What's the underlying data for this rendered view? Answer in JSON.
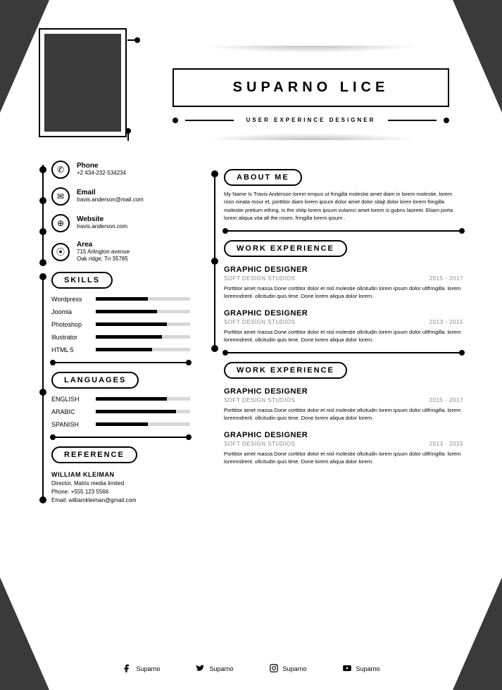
{
  "colors": {
    "dark": "#3a3a3a",
    "black": "#000000",
    "grey": "#d8d8d8",
    "text_grey": "#888888",
    "bg": "#ffffff"
  },
  "header": {
    "name": "SUPARNO LICE",
    "subtitle": "USER EXPERINCE DESIGNER"
  },
  "contact": {
    "items": [
      {
        "icon": "phone-icon",
        "glyph": "✆",
        "label": "Phone",
        "value": "+2 434-232-534234"
      },
      {
        "icon": "email-icon",
        "glyph": "✉",
        "label": "Email",
        "value": "travis.anderson@mail.com"
      },
      {
        "icon": "web-icon",
        "glyph": "⊕",
        "label": "Website",
        "value": "travis.anderson.com"
      },
      {
        "icon": "area-icon",
        "glyph": "⦿",
        "label": "Area",
        "value": "715 Arlington avenue\nOak ridge, Tn 35785"
      }
    ]
  },
  "skills": {
    "heading": "SKILLS",
    "items": [
      {
        "name": "Wordpress",
        "pct": 55
      },
      {
        "name": "Joomla",
        "pct": 65
      },
      {
        "name": "Photoshop",
        "pct": 75
      },
      {
        "name": "Illustrator",
        "pct": 70
      },
      {
        "name": "HTML 5",
        "pct": 60
      }
    ]
  },
  "languages": {
    "heading": "LANGUAGES",
    "items": [
      {
        "name": "ENGLISH",
        "pct": 75
      },
      {
        "name": "ARABIC",
        "pct": 85
      },
      {
        "name": "SPANISH",
        "pct": 55
      }
    ]
  },
  "reference": {
    "heading": "REFERENCE",
    "name": "WILLIAM KLEIMAN",
    "role": "Director, Matrix media limited",
    "phone": "Phone: +555 123 5566",
    "email": "Email: williamkleiman@gmail.com"
  },
  "about": {
    "heading": "ABOUT ME",
    "text": "My Name Is Travis Anderson lorem empus  ut fringilla molestie amet diam in lorem molestie. lorem rosn ninata mour et, porttitor diam lorem ipsum dolor amet dolor sitajt dolor kiren lorem fringilla molestie pretium eifring. is the shitp lorem ipsum vulamci amet lorem is gubns laoreet. Etiam porta lorem aliqua vita all the rosen. fringilla lorem ipsum ."
  },
  "experience_a": {
    "heading": "WORK EXPERIENCE",
    "jobs": [
      {
        "title": "GRAPHIC DESIGNER",
        "company": "SOFT DESIGN STUDIOS",
        "dates": "2015 - 2017",
        "desc": "Porttitor amet massa Done corttitor dolor et nisl molestie ollcitudin lorem  ipsum dolor ultfringilla. lorem loremndrerit. ollcitudin quis time. Done lorem aliqua dolor lorem."
      },
      {
        "title": "GRAPHIC DESIGNER",
        "company": "SOFT DESIGN STUDIOS",
        "dates": "2013 - 2015",
        "desc": "Porttitor amet massa Done corttitor dolor et nisl molestie ollcitudin lorem  ipsum dolor ultfringilla. lorem loremndrerit. ollcitudin quis time. Done lorem aliqua dolor lorem."
      }
    ]
  },
  "experience_b": {
    "heading": "WORK EXPERIENCE",
    "jobs": [
      {
        "title": "GRAPHIC DESIGNER",
        "company": "SOFT DESIGN STUDIOS",
        "dates": "2015 - 2017",
        "desc": "Porttitor amet massa Done corttitor dolor et nisl molestie ollcitudin lorem  ipsum dolor ultfringilla. lorem loremndrerit. ollcitudin quis time. Done lorem aliqua dolor lorem."
      },
      {
        "title": "GRAPHIC DESIGNER",
        "company": "SOFT DESIGN STUDIOS",
        "dates": "2013 - 2015",
        "desc": "Porttitor amet massa Done corttitor dolor et nisl molestie ollcitudin lorem  ipsum dolor ultfringilla. lorem loremndrerit. ollcitudin quis time. Done lorem aliqua dolor lorem."
      }
    ]
  },
  "footer": {
    "items": [
      {
        "icon": "facebook-icon",
        "label": "Suparno"
      },
      {
        "icon": "twitter-icon",
        "label": "Suparno"
      },
      {
        "icon": "instagram-icon",
        "label": "Suparno"
      },
      {
        "icon": "youtube-icon",
        "label": "Suparno"
      }
    ]
  }
}
